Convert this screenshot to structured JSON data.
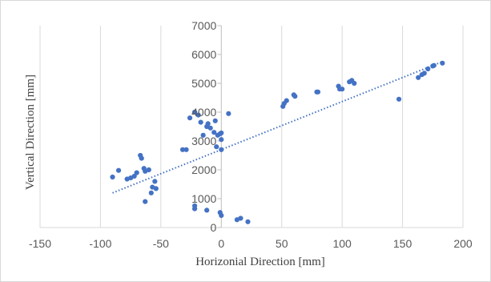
{
  "chart_data": {
    "type": "scatter",
    "xlabel": "Horizonial Direction [mm]",
    "ylabel": "Vertical Direction [mm]",
    "xlim": [
      -150,
      200
    ],
    "ylim": [
      0,
      7000
    ],
    "x_ticks": [
      -150,
      -100,
      -50,
      0,
      50,
      100,
      150,
      200
    ],
    "y_ticks": [
      0,
      1000,
      2000,
      3000,
      4000,
      5000,
      6000,
      7000
    ],
    "grid": "vertical",
    "marker_color": "#4472c4",
    "trendline": {
      "type": "linear",
      "style": "dotted",
      "x_range": [
        -90,
        183
      ],
      "y_range": [
        1200,
        5750
      ]
    },
    "series": [
      {
        "points": [
          [
            -90,
            1750
          ],
          [
            -85,
            1980
          ],
          [
            -78,
            1680
          ],
          [
            -75,
            1720
          ],
          [
            -72,
            1780
          ],
          [
            -70,
            1900
          ],
          [
            -67,
            2500
          ],
          [
            -66,
            2400
          ],
          [
            -64,
            2050
          ],
          [
            -63,
            1950
          ],
          [
            -60,
            2000
          ],
          [
            -58,
            1200
          ],
          [
            -57,
            1400
          ],
          [
            -55,
            1600
          ],
          [
            -54,
            1350
          ],
          [
            -63,
            900
          ],
          [
            -32,
            2700
          ],
          [
            -29,
            2700
          ],
          [
            -26,
            3800
          ],
          [
            -22,
            4000
          ],
          [
            -19,
            3900
          ],
          [
            -17,
            3650
          ],
          [
            -15,
            3200
          ],
          [
            -12,
            3500
          ],
          [
            -11,
            3600
          ],
          [
            -9,
            3450
          ],
          [
            -6,
            3300
          ],
          [
            -5,
            3700
          ],
          [
            -3,
            3200
          ],
          [
            -1,
            3250
          ],
          [
            0,
            3050
          ],
          [
            -4,
            2800
          ],
          [
            0,
            2700
          ],
          [
            0,
            3280
          ],
          [
            6,
            3950
          ],
          [
            -22,
            750
          ],
          [
            -22,
            650
          ],
          [
            -12,
            600
          ],
          [
            -1,
            520
          ],
          [
            0,
            420
          ],
          [
            13,
            270
          ],
          [
            16,
            320
          ],
          [
            22,
            200
          ],
          [
            51,
            4200
          ],
          [
            52,
            4300
          ],
          [
            54,
            4400
          ],
          [
            60,
            4600
          ],
          [
            61,
            4550
          ],
          [
            79,
            4700
          ],
          [
            80,
            4700
          ],
          [
            97,
            4900
          ],
          [
            98,
            4800
          ],
          [
            100,
            4800
          ],
          [
            106,
            5050
          ],
          [
            108,
            5100
          ],
          [
            110,
            5000
          ],
          [
            147,
            4450
          ],
          [
            163,
            5200
          ],
          [
            166,
            5300
          ],
          [
            168,
            5350
          ],
          [
            171,
            5500
          ],
          [
            175,
            5600
          ],
          [
            176,
            5620
          ],
          [
            183,
            5700
          ]
        ]
      }
    ]
  }
}
